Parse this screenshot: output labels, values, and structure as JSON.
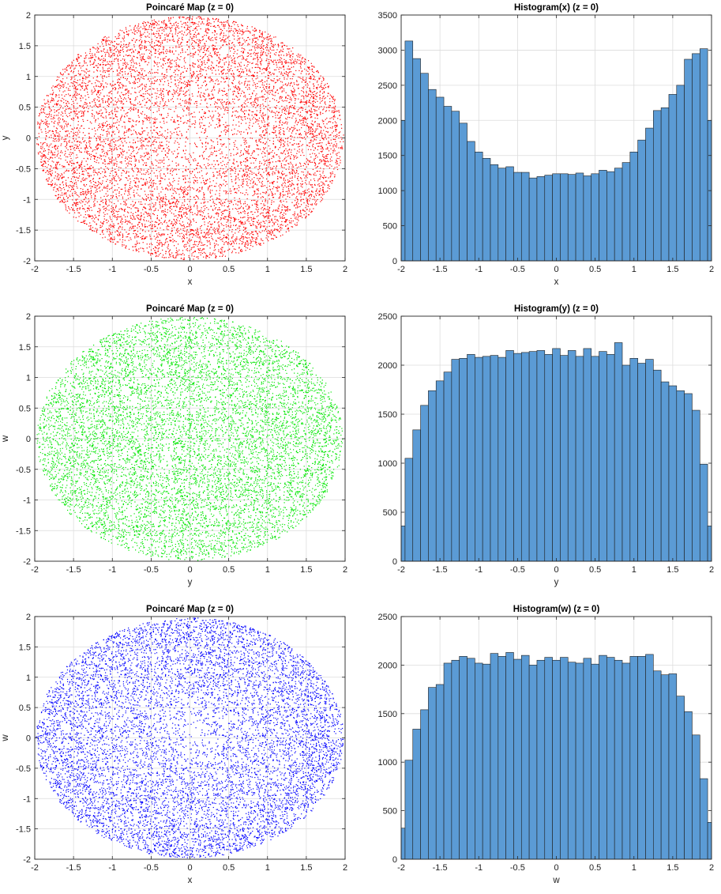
{
  "chart_data": [
    {
      "type": "scatter",
      "title": "Poincaré Map (z = 0)",
      "xlabel": "x",
      "ylabel": "y",
      "xlim": [
        -2,
        2
      ],
      "ylim": [
        -2,
        2
      ],
      "xticks": [
        "-2",
        "-1.5",
        "-1",
        "-0.5",
        "0",
        "0.5",
        "1",
        "1.5",
        "2"
      ],
      "yticks": [
        "-2",
        "-1.5",
        "-1",
        "-0.5",
        "0",
        "0.5",
        "1",
        "1.5",
        "2"
      ],
      "grid": true,
      "color": "#ff0000",
      "distribution": "elliptical ring, points dense near boundary, sparse at center",
      "ellipse": {
        "x_semi": 1.98,
        "y_semi": 1.98,
        "x_center": 0.0,
        "y_center": 0.0
      }
    },
    {
      "type": "bar",
      "title": "Histogram(x) (z = 0)",
      "xlabel": "x",
      "ylabel": "",
      "xlim": [
        -2,
        2
      ],
      "ylim": [
        0,
        3500
      ],
      "xticks": [
        "-2",
        "-1.5",
        "-1",
        "-0.5",
        "0",
        "0.5",
        "1",
        "1.5",
        "2"
      ],
      "yticks": [
        "0",
        "500",
        "1000",
        "1500",
        "2000",
        "2500",
        "3000",
        "3500"
      ],
      "grid": true,
      "color": "#5b9bd5",
      "bin_edges_range": [
        -2,
        2
      ],
      "values": [
        2000,
        3130,
        2880,
        2670,
        2440,
        2330,
        2200,
        2130,
        1960,
        1700,
        1550,
        1460,
        1370,
        1320,
        1340,
        1260,
        1260,
        1180,
        1200,
        1220,
        1240,
        1240,
        1230,
        1250,
        1210,
        1240,
        1290,
        1270,
        1320,
        1400,
        1550,
        1720,
        1890,
        2140,
        2180,
        2370,
        2500,
        2870,
        2950,
        3020,
        2000
      ]
    },
    {
      "type": "scatter",
      "title": "Poincaré Map (z = 0)",
      "xlabel": "y",
      "ylabel": "w",
      "xlim": [
        -2,
        2
      ],
      "ylim": [
        -2,
        2
      ],
      "xticks": [
        "-2",
        "-1.5",
        "-1",
        "-0.5",
        "0",
        "0.5",
        "1",
        "1.5",
        "2"
      ],
      "yticks": [
        "-2",
        "-1.5",
        "-1",
        "-0.5",
        "0",
        "0.5",
        "1",
        "1.5",
        "2"
      ],
      "grid": true,
      "color": "#00e600",
      "distribution": "filled ellipse, nearly uniform density",
      "ellipse": {
        "x_semi": 1.97,
        "y_semi": 1.99,
        "x_center": 0.0,
        "y_center": 0.0
      }
    },
    {
      "type": "bar",
      "title": "Histogram(y) (z = 0)",
      "xlabel": "y",
      "ylabel": "",
      "xlim": [
        -2,
        2
      ],
      "ylim": [
        0,
        2500
      ],
      "xticks": [
        "-2",
        "-1.5",
        "-1",
        "-0.5",
        "0",
        "0.5",
        "1",
        "1.5",
        "2"
      ],
      "yticks": [
        "0",
        "500",
        "1000",
        "1500",
        "2000",
        "2500"
      ],
      "grid": true,
      "color": "#5b9bd5",
      "bin_edges_range": [
        -2,
        2
      ],
      "values": [
        360,
        1050,
        1340,
        1590,
        1740,
        1840,
        1930,
        2060,
        2070,
        2110,
        2080,
        2090,
        2100,
        2080,
        2150,
        2120,
        2130,
        2140,
        2150,
        2110,
        2170,
        2100,
        2150,
        2090,
        2170,
        2090,
        2140,
        2110,
        2230,
        2000,
        2070,
        2020,
        2060,
        1950,
        1830,
        1790,
        1740,
        1710,
        1540,
        990,
        360
      ]
    },
    {
      "type": "scatter",
      "title": "Poincaré Map (z = 0)",
      "xlabel": "x",
      "ylabel": "w",
      "xlim": [
        -2,
        2
      ],
      "ylim": [
        -2,
        2
      ],
      "xticks": [
        "-2",
        "-1.5",
        "-1",
        "-0.5",
        "0",
        "0.5",
        "1",
        "1.5",
        "2"
      ],
      "yticks": [
        "-2",
        "-1.5",
        "-1",
        "-0.5",
        "0",
        "0.5",
        "1",
        "1.5",
        "2"
      ],
      "grid": true,
      "color": "#0000ff",
      "distribution": "elliptical ring, points dense near boundary, sparse at center",
      "ellipse": {
        "x_semi": 1.98,
        "y_semi": 1.98,
        "x_center": 0.0,
        "y_center": 0.0
      }
    },
    {
      "type": "bar",
      "title": "Histogram(w) (z = 0)",
      "xlabel": "w",
      "ylabel": "",
      "xlim": [
        -2,
        2
      ],
      "ylim": [
        0,
        2500
      ],
      "xticks": [
        "-2",
        "-1.5",
        "-1",
        "-0.5",
        "0",
        "0.5",
        "1",
        "1.5",
        "2"
      ],
      "yticks": [
        "0",
        "500",
        "1000",
        "1500",
        "2000",
        "2500"
      ],
      "grid": true,
      "color": "#5b9bd5",
      "bin_edges_range": [
        -2,
        2
      ],
      "values": [
        320,
        1020,
        1340,
        1540,
        1770,
        1800,
        2020,
        2050,
        2090,
        2070,
        2020,
        2010,
        2120,
        2090,
        2130,
        2060,
        2100,
        2000,
        2050,
        2080,
        2050,
        2080,
        2030,
        2020,
        2070,
        2010,
        2100,
        2080,
        2050,
        2020,
        2090,
        2090,
        2110,
        1940,
        1900,
        1910,
        1680,
        1520,
        1280,
        830,
        380
      ]
    }
  ]
}
